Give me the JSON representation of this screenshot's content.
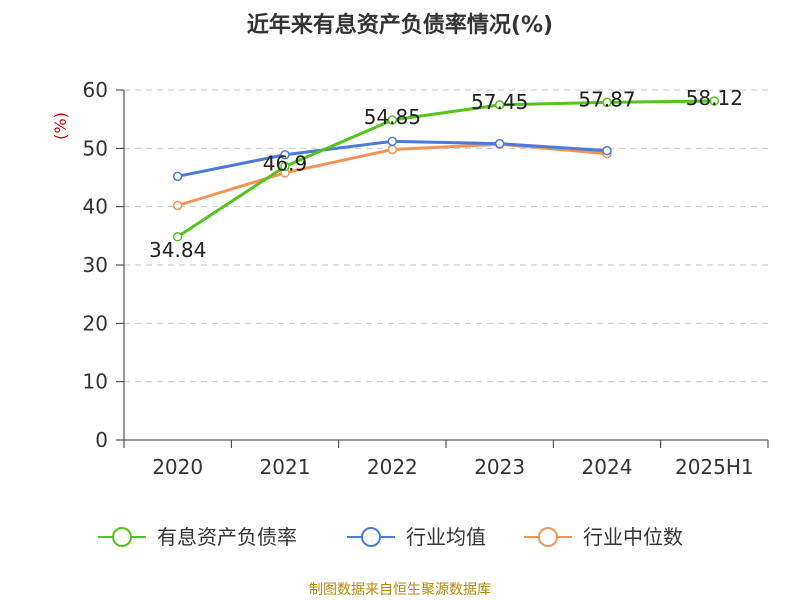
{
  "chart_data": {
    "type": "line",
    "title": "近年来有息资产负债率情况(%)",
    "ylabel": "(%)",
    "categories": [
      "2020",
      "2021",
      "2022",
      "2023",
      "2024",
      "2025H1"
    ],
    "ylim": [
      0,
      60
    ],
    "yticks": [
      0,
      10,
      20,
      30,
      40,
      50,
      60
    ],
    "grid": true,
    "legend_position": "bottom",
    "series": [
      {
        "name": "有息资产负债率",
        "values": [
          34.84,
          46.9,
          54.85,
          57.45,
          57.87,
          58.12
        ],
        "color": "#52c41a",
        "labels": [
          "34.84",
          "46.9",
          "54.85",
          "57.45",
          "57.87",
          "58.12"
        ]
      },
      {
        "name": "行业均值",
        "values": [
          45.2,
          48.9,
          51.2,
          50.8,
          49.6,
          null
        ],
        "color": "#4a7bd9"
      },
      {
        "name": "行业中位数",
        "values": [
          40.2,
          45.8,
          49.8,
          50.7,
          49.1,
          null
        ],
        "color": "#f79257"
      }
    ]
  },
  "source_text": "制图数据来自恒生聚源数据库"
}
